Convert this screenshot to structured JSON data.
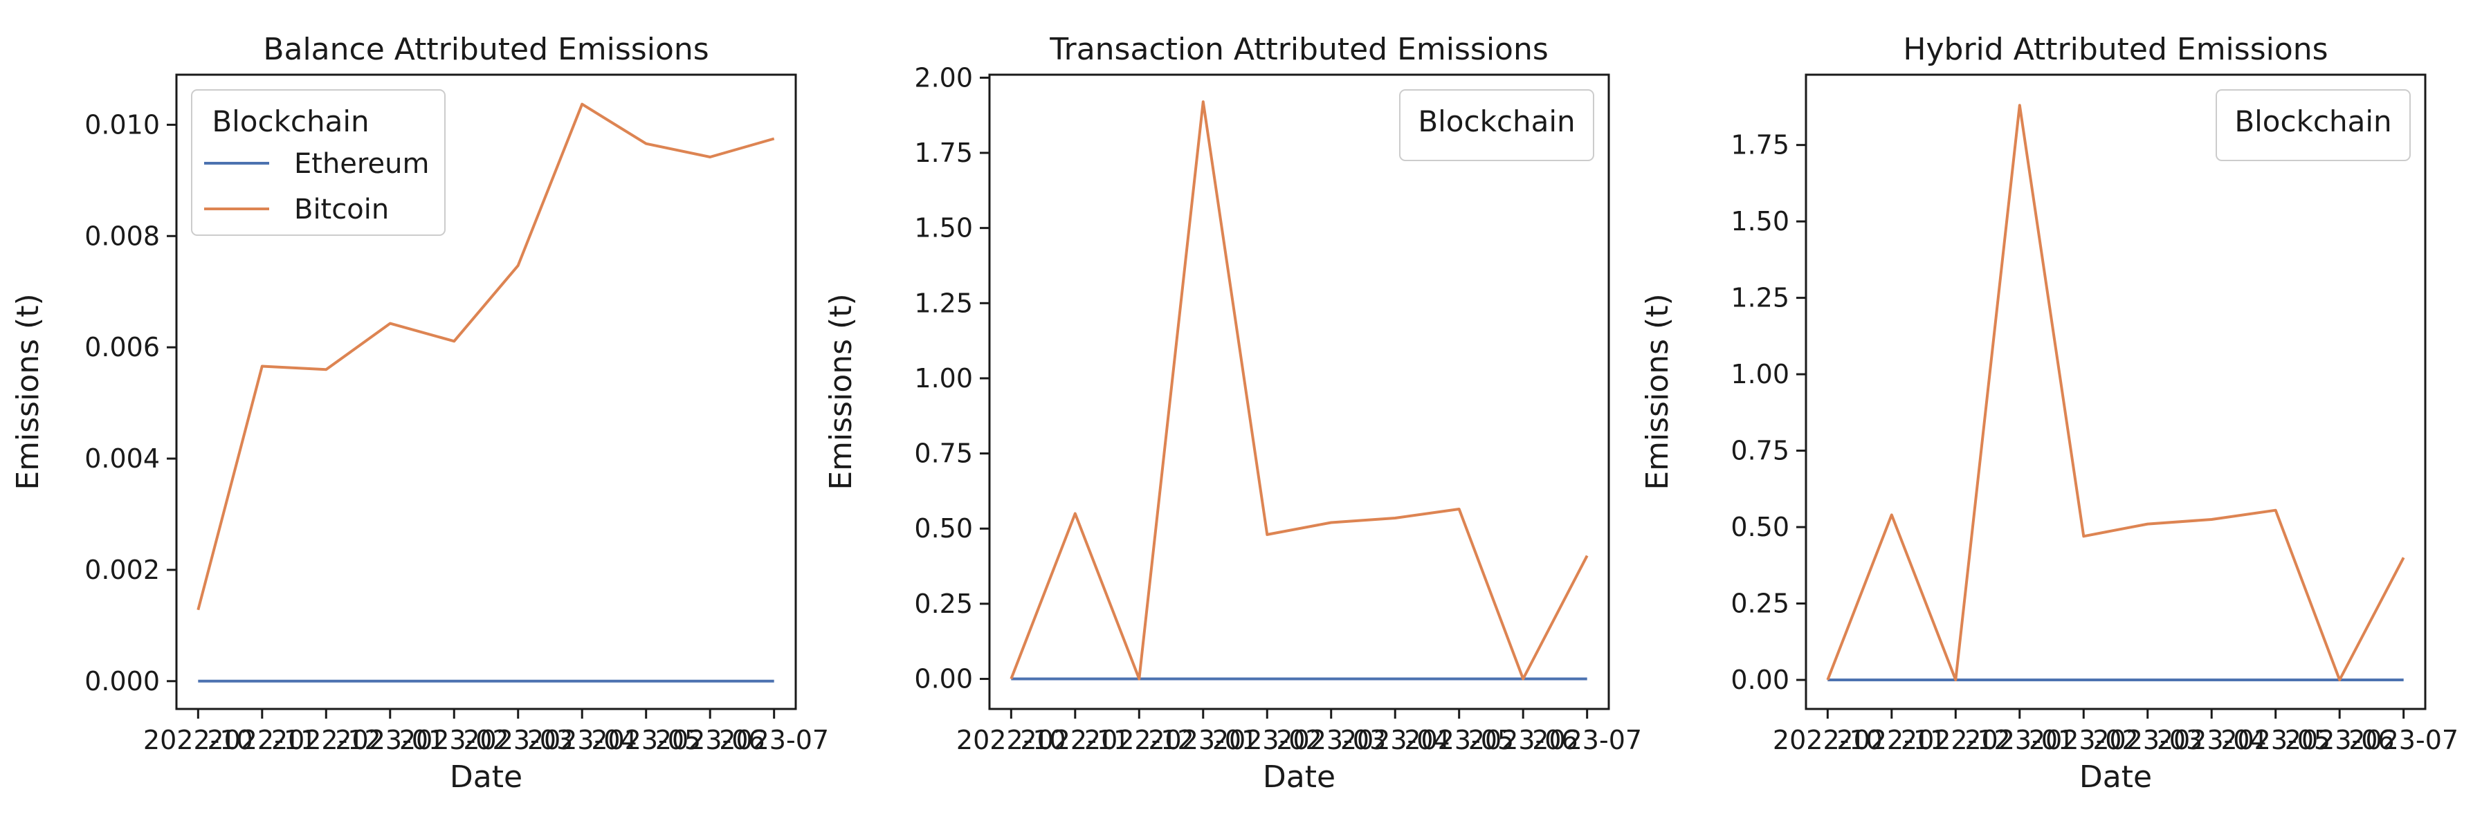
{
  "figure": {
    "background": "#ffffff"
  },
  "chart_data": [
    {
      "type": "line",
      "title": "Balance Attributed Emissions",
      "xlabel": "Date",
      "ylabel": "Emissions (t)",
      "x": [
        "2022-10",
        "2022-11",
        "2022-12",
        "2023-01",
        "2023-02",
        "2023-03",
        "2023-04",
        "2023-05",
        "2023-06",
        "2023-07"
      ],
      "xtick_labels": [
        "2022-10",
        "2022-11",
        "2022-12",
        "2023-01",
        "2023-02",
        "2023-03",
        "2023-04",
        "2023-05",
        "2023-06",
        "2023-07"
      ],
      "ylim": [
        -0.0005,
        0.0109
      ],
      "yticks": [
        0.0,
        0.002,
        0.004,
        0.006,
        0.008,
        0.01
      ],
      "ytick_labels": [
        "0.000",
        "0.002",
        "0.004",
        "0.006",
        "0.008",
        "0.010"
      ],
      "grid": false,
      "legend": {
        "title": "Blockchain",
        "placement": "top-left",
        "entries_shown": true
      },
      "series": [
        {
          "name": "Ethereum",
          "color": "#4c72b0",
          "values": [
            0.0,
            0.0,
            0.0,
            0.0,
            0.0,
            0.0,
            0.0,
            0.0,
            0.0,
            0.0
          ]
        },
        {
          "name": "Bitcoin",
          "color": "#dd8452",
          "values": [
            0.00128,
            0.00566,
            0.0056,
            0.00643,
            0.00611,
            0.00747,
            0.01037,
            0.00966,
            0.00942,
            0.00975
          ]
        }
      ]
    },
    {
      "type": "line",
      "title": "Transaction Attributed Emissions",
      "xlabel": "Date",
      "ylabel": "Emissions (t)",
      "x": [
        "2022-10",
        "2022-11",
        "2022-12",
        "2023-01",
        "2023-02",
        "2023-03",
        "2023-04",
        "2023-05",
        "2023-06",
        "2023-07"
      ],
      "xtick_labels": [
        "2022-10",
        "2022-11",
        "2022-12",
        "2023-01",
        "2023-02",
        "2023-03",
        "2023-04",
        "2023-05",
        "2023-06",
        "2023-07"
      ],
      "ylim": [
        -0.1,
        2.01
      ],
      "yticks": [
        0.0,
        0.25,
        0.5,
        0.75,
        1.0,
        1.25,
        1.5,
        1.75,
        2.0
      ],
      "ytick_labels": [
        "0.00",
        "0.25",
        "0.50",
        "0.75",
        "1.00",
        "1.25",
        "1.50",
        "1.75",
        "2.00"
      ],
      "grid": false,
      "legend": {
        "title": "Blockchain",
        "placement": "top-right",
        "entries_shown": false
      },
      "series": [
        {
          "name": "Ethereum",
          "color": "#4c72b0",
          "values": [
            0.0,
            0.0,
            0.0,
            0.0,
            0.0,
            0.0,
            0.0,
            0.0,
            0.0,
            0.0
          ]
        },
        {
          "name": "Bitcoin",
          "color": "#dd8452",
          "values": [
            0.0,
            0.55,
            0.0,
            1.92,
            0.48,
            0.52,
            0.535,
            0.565,
            0.0,
            0.41
          ]
        }
      ]
    },
    {
      "type": "line",
      "title": "Hybrid Attributed Emissions",
      "xlabel": "Date",
      "ylabel": "Emissions (t)",
      "x": [
        "2022-10",
        "2022-11",
        "2022-12",
        "2023-01",
        "2023-02",
        "2023-03",
        "2023-04",
        "2023-05",
        "2023-06",
        "2023-07"
      ],
      "xtick_labels": [
        "2022-10",
        "2022-11",
        "2022-12",
        "2023-01",
        "2023-02",
        "2023-03",
        "2023-04",
        "2023-05",
        "2023-06",
        "2023-07"
      ],
      "ylim": [
        -0.095,
        1.98
      ],
      "yticks": [
        0.0,
        0.25,
        0.5,
        0.75,
        1.0,
        1.25,
        1.5,
        1.75
      ],
      "ytick_labels": [
        "0.00",
        "0.25",
        "0.50",
        "0.75",
        "1.00",
        "1.25",
        "1.50",
        "1.75"
      ],
      "grid": false,
      "legend": {
        "title": "Blockchain",
        "placement": "top-right",
        "entries_shown": false
      },
      "series": [
        {
          "name": "Ethereum",
          "color": "#4c72b0",
          "values": [
            0.0,
            0.0,
            0.0,
            0.0,
            0.0,
            0.0,
            0.0,
            0.0,
            0.0,
            0.0
          ]
        },
        {
          "name": "Bitcoin",
          "color": "#dd8452",
          "values": [
            0.0,
            0.54,
            0.0,
            1.88,
            0.47,
            0.51,
            0.525,
            0.555,
            0.0,
            0.4
          ]
        }
      ]
    }
  ]
}
